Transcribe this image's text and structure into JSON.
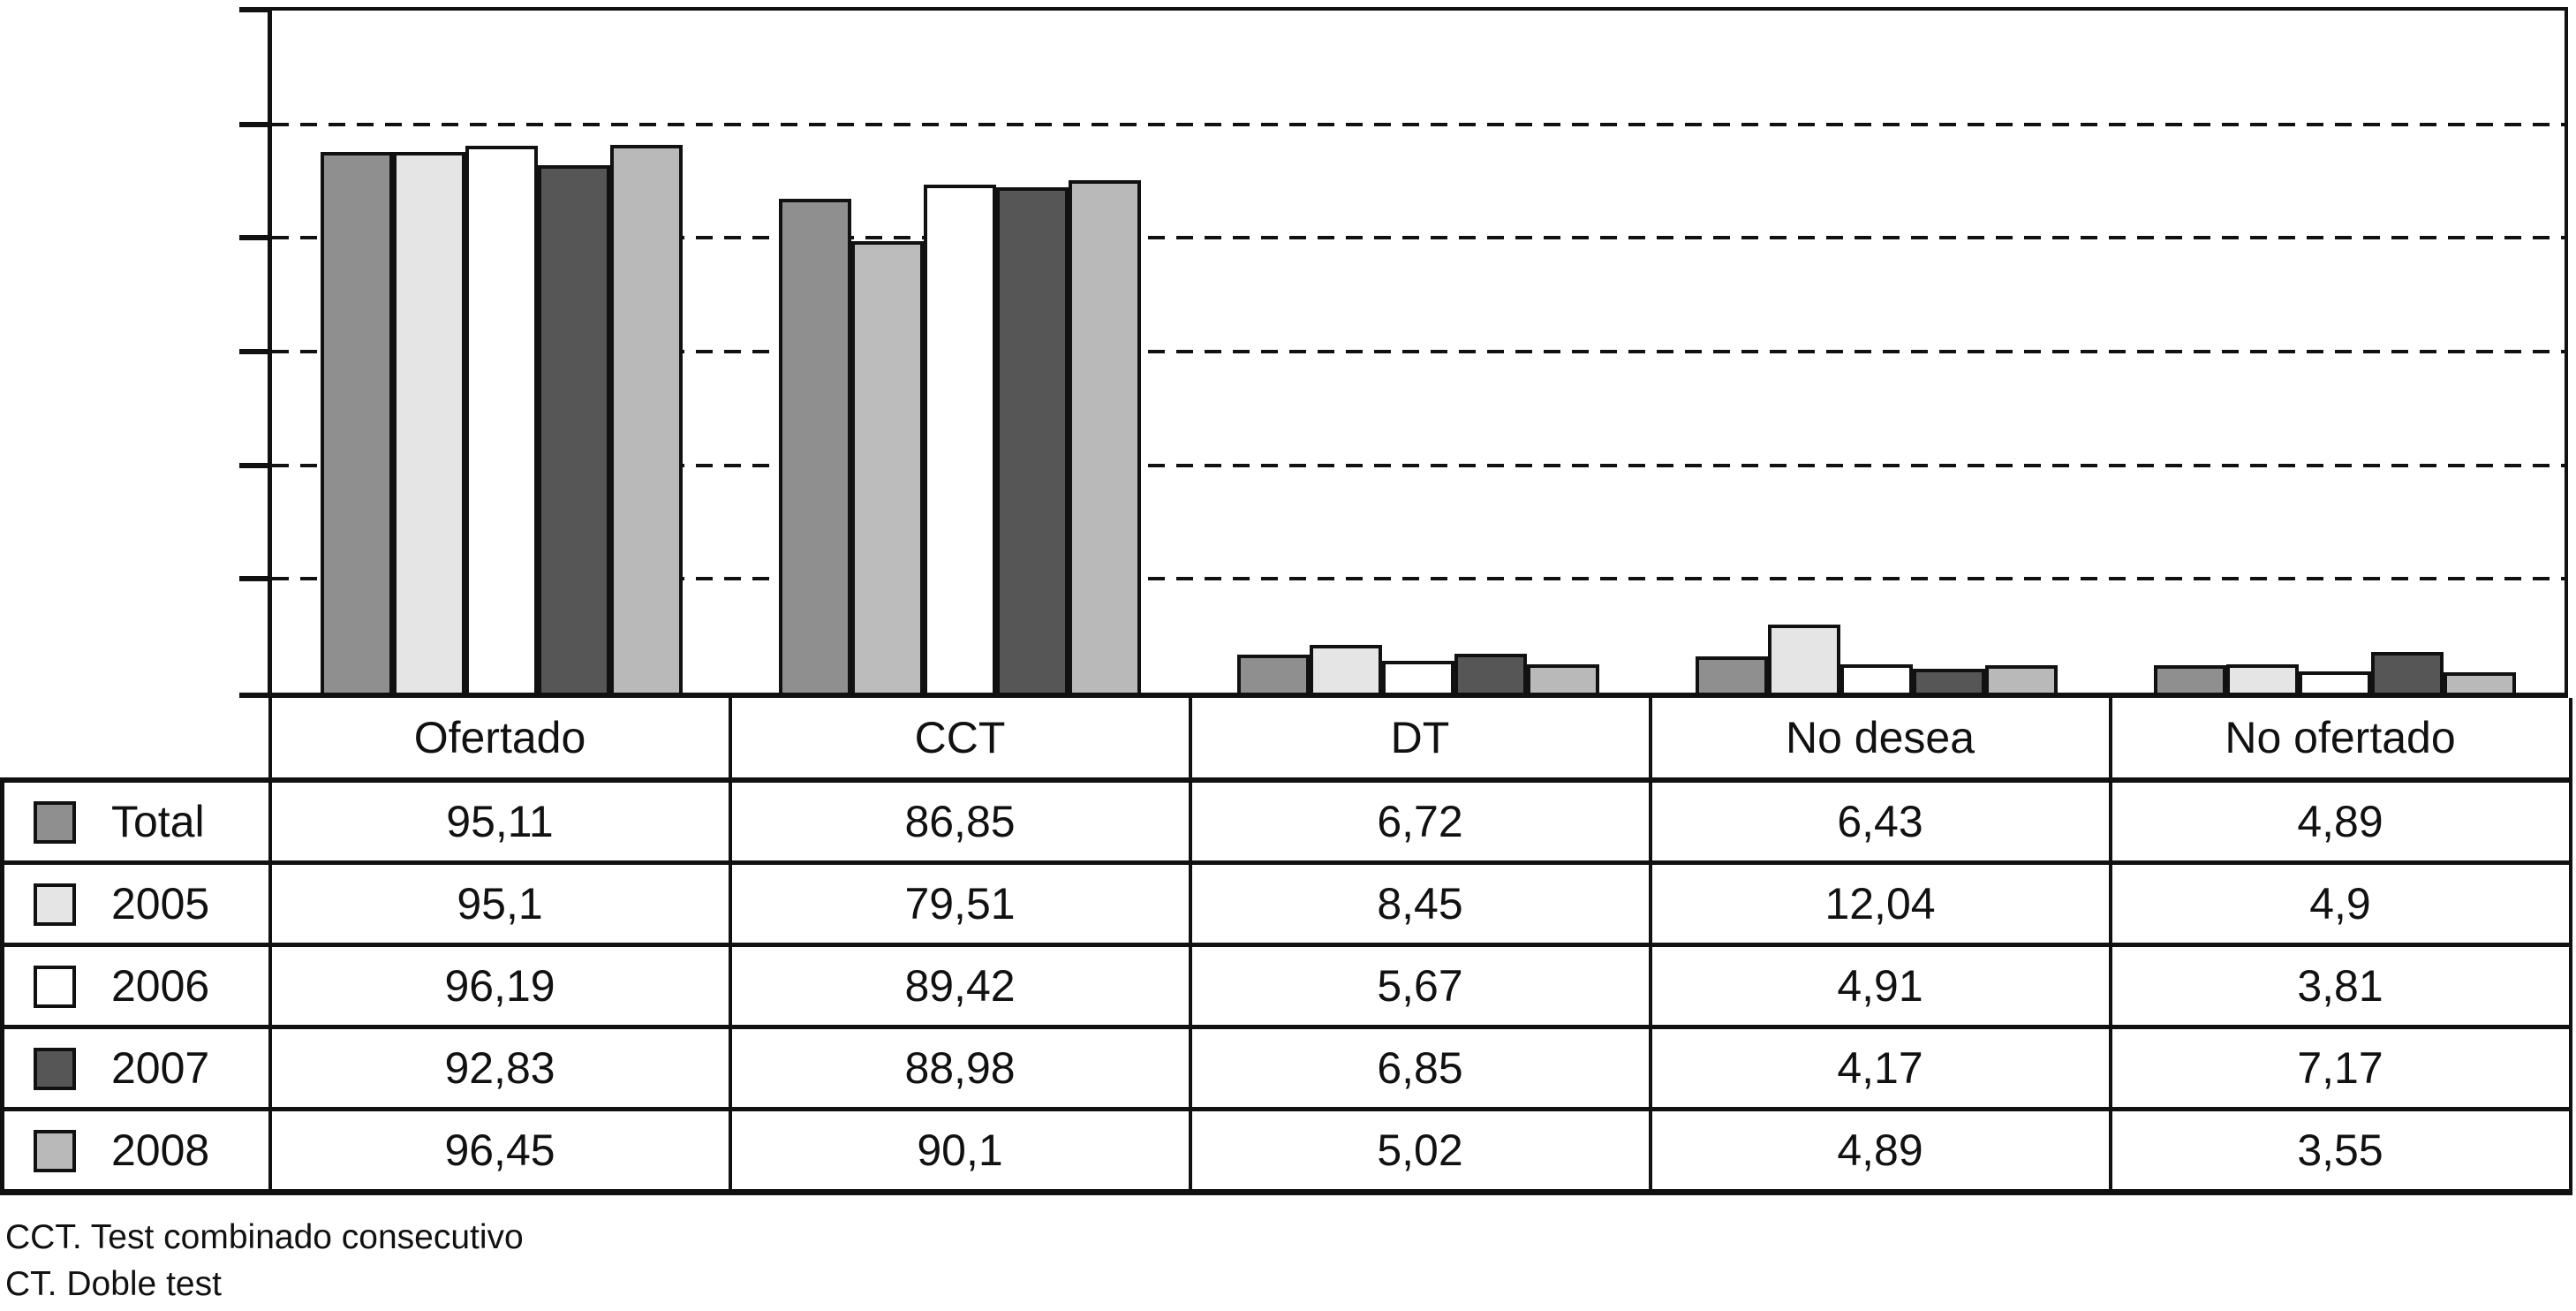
{
  "chart_data": {
    "type": "bar",
    "title": "",
    "xlabel": "",
    "ylabel": "",
    "categories": [
      "Ofertado",
      "CCT",
      "DT",
      "No desea",
      "No ofertado"
    ],
    "series": [
      {
        "name": "Total",
        "color": "#8f8f8f",
        "values": [
          95.11,
          86.85,
          6.72,
          6.43,
          4.89
        ]
      },
      {
        "name": "2005",
        "color": "#e5e5e5",
        "values": [
          95.1,
          79.51,
          8.45,
          12.04,
          4.9
        ]
      },
      {
        "name": "2006",
        "color": "#ffffff",
        "values": [
          96.19,
          89.42,
          5.67,
          4.91,
          3.81
        ]
      },
      {
        "name": "2007",
        "color": "#565656",
        "values": [
          92.83,
          88.98,
          6.85,
          4.17,
          7.17
        ]
      },
      {
        "name": "2008",
        "color": "#b9b9b9",
        "values": [
          96.45,
          90.1,
          5.02,
          4.89,
          3.55
        ]
      }
    ],
    "color_overrides": {
      "CCT": {
        "2005": "#bcbcbc"
      }
    },
    "ylim": [
      0,
      120
    ],
    "gridline_step": 20,
    "grid": "dashed-horizontal",
    "y_tick_labels_visible": false,
    "legend_position": "table-left-column"
  },
  "table": {
    "column_headers": [
      "Ofertado",
      "CCT",
      "DT",
      "No desea",
      "No ofertado"
    ],
    "rows": [
      {
        "label": "Total",
        "swatch_color": "#8f8f8f",
        "values": [
          "95,11",
          "86,85",
          "6,72",
          "6,43",
          "4,89"
        ]
      },
      {
        "label": "2005",
        "swatch_color": "#e5e5e5",
        "values": [
          "95,1",
          "79,51",
          "8,45",
          "12,04",
          "4,9"
        ]
      },
      {
        "label": "2006",
        "swatch_color": "#ffffff",
        "values": [
          "96,19",
          "89,42",
          "5,67",
          "4,91",
          "3,81"
        ]
      },
      {
        "label": "2007",
        "swatch_color": "#565656",
        "values": [
          "92,83",
          "88,98",
          "6,85",
          "4,17",
          "7,17"
        ]
      },
      {
        "label": "2008",
        "swatch_color": "#b9b9b9",
        "values": [
          "96,45",
          "90,1",
          "5,02",
          "4,89",
          "3,55"
        ]
      }
    ]
  },
  "footnotes": [
    "CCT. Test combinado consecutivo",
    "CT. Doble test"
  ],
  "colors": {
    "line": "#111111",
    "background": "#ffffff"
  }
}
